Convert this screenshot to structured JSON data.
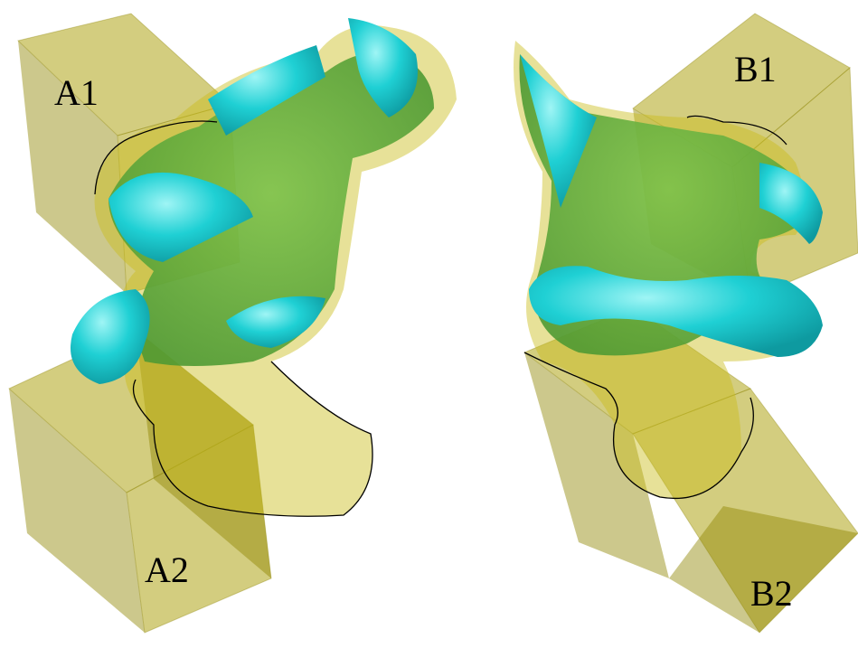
{
  "labels": [
    "A1",
    "A2",
    "B1",
    "B2"
  ]
}
